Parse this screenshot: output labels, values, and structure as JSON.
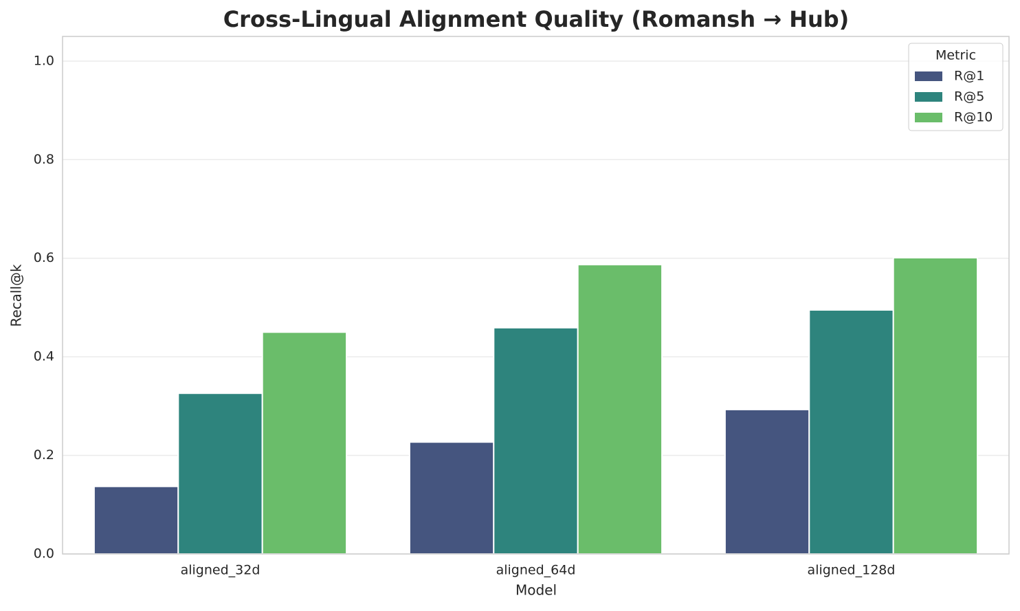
{
  "chart_data": {
    "type": "grouped_bar",
    "title": "Cross-Lingual Alignment Quality (Romansh → Hub)",
    "x_label": "Model",
    "y_label": "Recall@k",
    "categories": [
      "aligned_32d",
      "aligned_64d",
      "aligned_128d"
    ],
    "series": [
      {
        "name": "R@1",
        "color": "#45557f",
        "values": [
          0.137,
          0.227,
          0.293
        ]
      },
      {
        "name": "R@5",
        "color": "#2e847d",
        "values": [
          0.326,
          0.459,
          0.495
        ]
      },
      {
        "name": "R@10",
        "color": "#6abd6a",
        "values": [
          0.45,
          0.587,
          0.601
        ]
      }
    ],
    "ylim": [
      0,
      1.05
    ],
    "yticks": [
      {
        "value": 0,
        "label": "0.0"
      },
      0.2,
      0.4,
      0.6,
      0.8,
      {
        "value": 1,
        "label": "1.0"
      }
    ],
    "grid": true,
    "legend_title": "Metric",
    "legend_position": "upper-right"
  }
}
